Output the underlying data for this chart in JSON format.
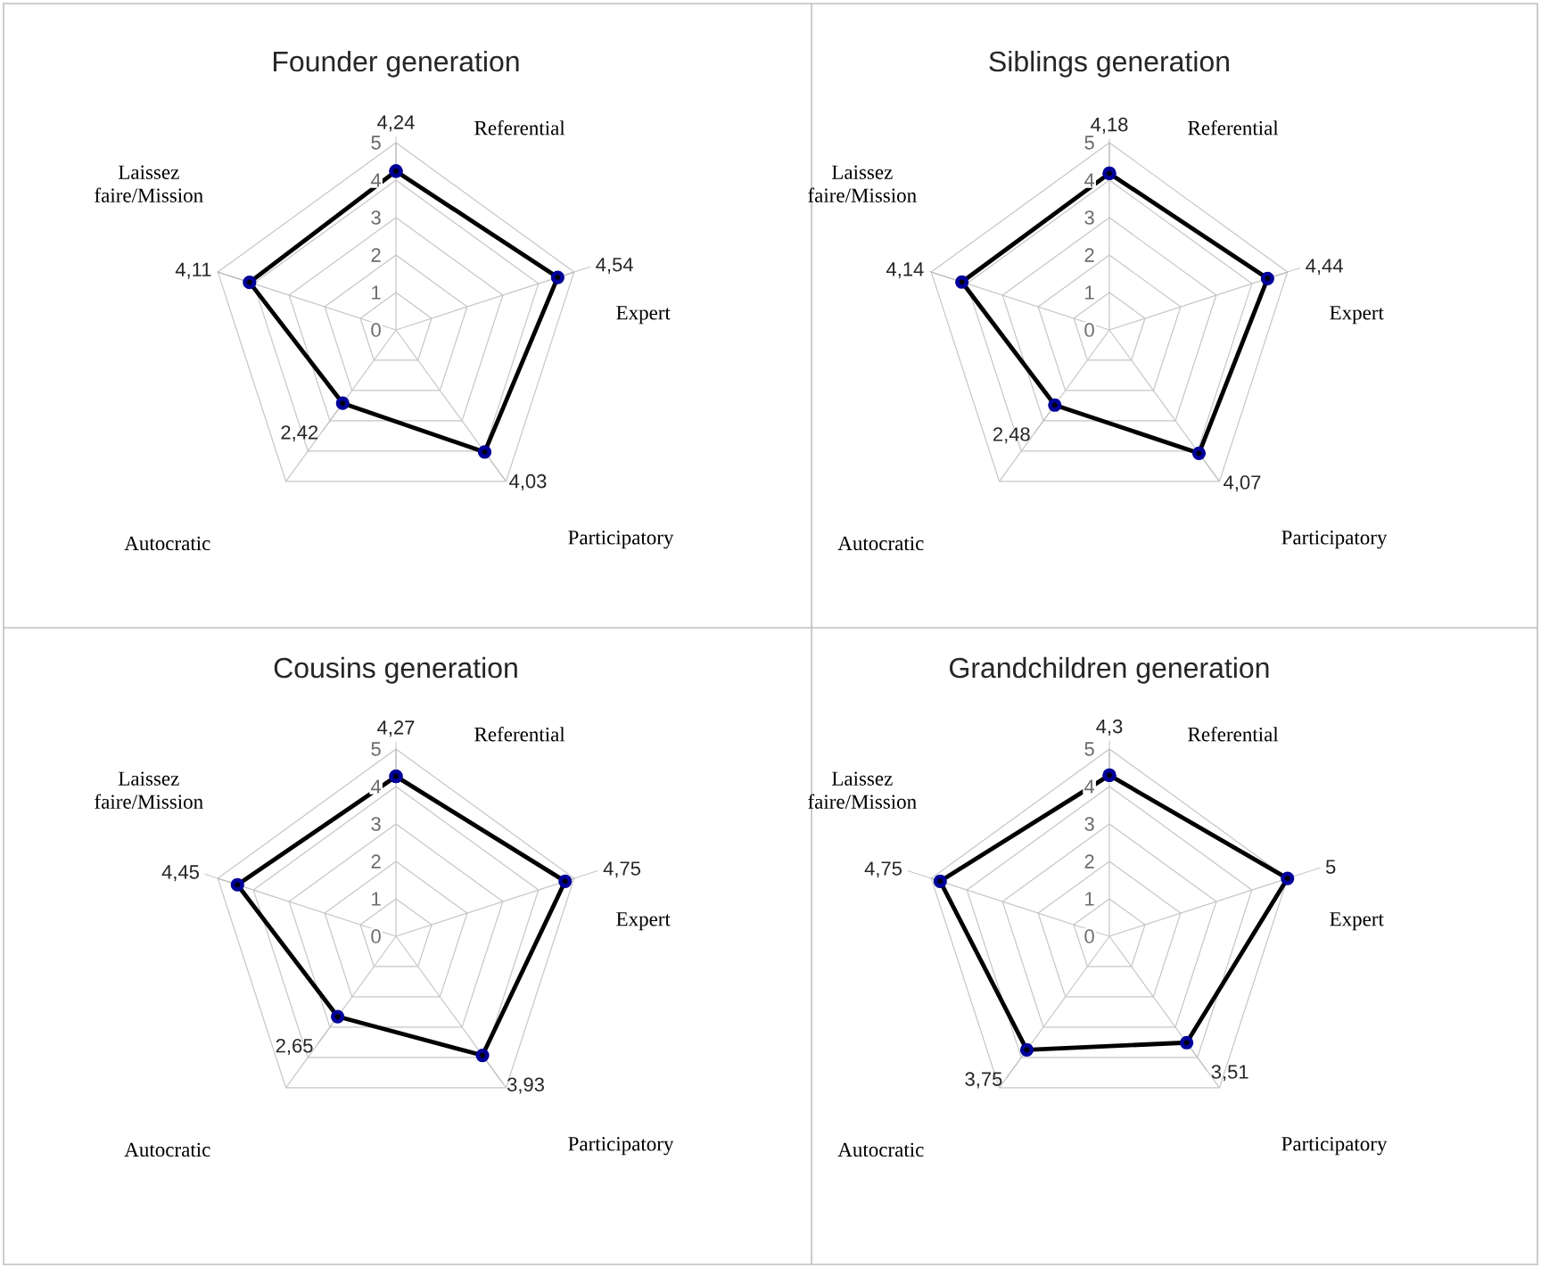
{
  "chart_data": [
    {
      "type": "radar",
      "title": "Founder generation",
      "categories": [
        "Referential",
        "Expert",
        "Participatory",
        "Autocratic",
        "Laissez faire/Mission"
      ],
      "ylim": [
        0,
        5
      ],
      "yticks": [
        0,
        1,
        2,
        3,
        4,
        5
      ],
      "grid": true,
      "marker": "circle",
      "series": [
        {
          "color": "#000000",
          "values": [
            4.24,
            4.54,
            4.03,
            2.42,
            4.11
          ],
          "value_labels": [
            "4,24",
            "4,54",
            "4,03",
            "2,42",
            "4,11"
          ]
        }
      ]
    },
    {
      "type": "radar",
      "title": "Siblings generation",
      "categories": [
        "Referential",
        "Expert",
        "Participatory",
        "Autocratic",
        "Laissez faire/Mission"
      ],
      "ylim": [
        0,
        5
      ],
      "yticks": [
        0,
        1,
        2,
        3,
        4,
        5
      ],
      "grid": true,
      "marker": "circle",
      "series": [
        {
          "color": "#000000",
          "values": [
            4.18,
            4.44,
            4.07,
            2.48,
            4.14
          ],
          "value_labels": [
            "4,18",
            "4,44",
            "4,07",
            "2,48",
            "4,14"
          ]
        }
      ]
    },
    {
      "type": "radar",
      "title": "Cousins generation",
      "categories": [
        "Referential",
        "Expert",
        "Participatory",
        "Autocratic",
        "Laissez faire/Mission"
      ],
      "ylim": [
        0,
        5
      ],
      "yticks": [
        0,
        1,
        2,
        3,
        4,
        5
      ],
      "grid": true,
      "marker": "circle",
      "series": [
        {
          "color": "#000000",
          "values": [
            4.27,
            4.75,
            3.93,
            2.65,
            4.45
          ],
          "value_labels": [
            "4,27",
            "4,75",
            "3,93",
            "2,65",
            "4,45"
          ]
        }
      ]
    },
    {
      "type": "radar",
      "title": "Grandchildren generation",
      "categories": [
        "Referential",
        "Expert",
        "Participatory",
        "Autocratic",
        "Laissez faire/Mission"
      ],
      "ylim": [
        0,
        5
      ],
      "yticks": [
        0,
        1,
        2,
        3,
        4,
        5
      ],
      "grid": true,
      "marker": "circle",
      "series": [
        {
          "color": "#000000",
          "values": [
            4.3,
            5,
            3.51,
            3.75,
            4.75
          ],
          "value_labels": [
            "4,3",
            "5",
            "3,51",
            "3,75",
            "4,75"
          ]
        }
      ]
    }
  ]
}
